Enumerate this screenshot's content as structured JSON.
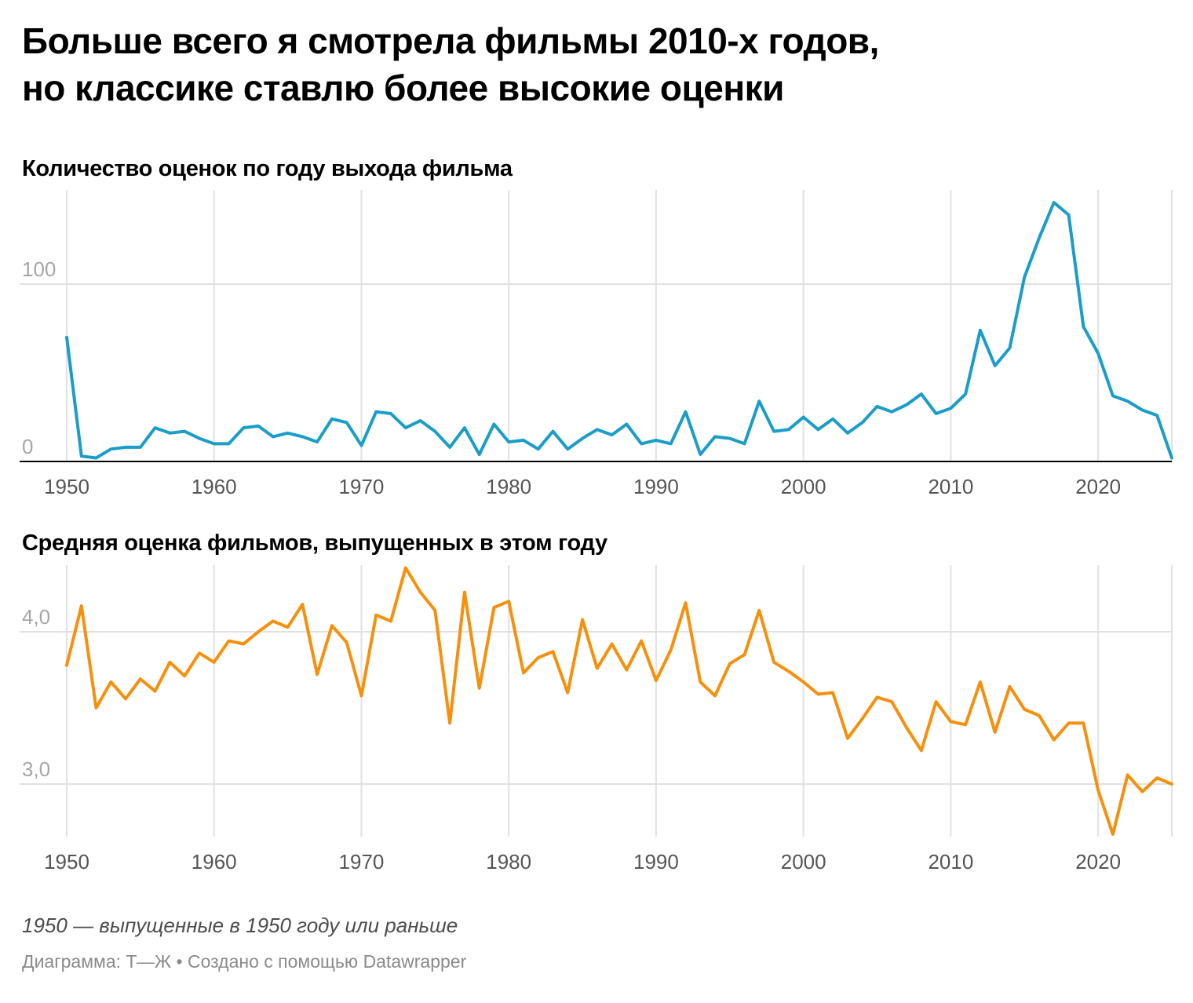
{
  "headline": {
    "line1": "Больше всего я смотрела фильмы 2010-х годов,",
    "line2": "но классике ставлю более высокие оценки"
  },
  "colors": {
    "count_line": "#1a9dc9",
    "rating_line": "#f6900c",
    "grid": "#e1e1e1",
    "baseline": "#000000"
  },
  "chart_data": [
    {
      "type": "line",
      "title": "Количество оценок по году выхода фильма",
      "xlabel": "",
      "ylabel": "",
      "x_ticks": [
        1950,
        1960,
        1970,
        1980,
        1990,
        2000,
        2010,
        2020
      ],
      "y_ticks": [
        {
          "value": 0,
          "label": "0"
        },
        {
          "value": 100,
          "label": "100"
        }
      ],
      "xlim": [
        1950,
        2025
      ],
      "ylim": [
        0,
        152
      ],
      "grid": true,
      "series": [
        {
          "x": [
            1950,
            1951,
            1952,
            1953,
            1954,
            1955,
            1956,
            1957,
            1958,
            1959,
            1960,
            1961,
            1962,
            1963,
            1964,
            1965,
            1966,
            1967,
            1968,
            1969,
            1970,
            1971,
            1972,
            1973,
            1974,
            1975,
            1976,
            1977,
            1978,
            1979,
            1980,
            1981,
            1982,
            1983,
            1984,
            1985,
            1986,
            1987,
            1988,
            1989,
            1990,
            1991,
            1992,
            1993,
            1994,
            1995,
            1996,
            1997,
            1998,
            1999,
            2000,
            2001,
            2002,
            2003,
            2004,
            2005,
            2006,
            2007,
            2008,
            2009,
            2010,
            2011,
            2012,
            2013,
            2014,
            2015,
            2016,
            2017,
            2018,
            2019,
            2020,
            2021,
            2022,
            2023,
            2024,
            2025
          ],
          "values": [
            70,
            3,
            2,
            7,
            8,
            8,
            19,
            16,
            17,
            13,
            10,
            10,
            19,
            20,
            14,
            16,
            14,
            11,
            24,
            22,
            9,
            28,
            27,
            19,
            23,
            17,
            8,
            19,
            4,
            21,
            11,
            12,
            7,
            17,
            7,
            13,
            18,
            15,
            21,
            10,
            12,
            10,
            28,
            4,
            14,
            13,
            10,
            34,
            17,
            18,
            25,
            18,
            24,
            16,
            22,
            31,
            28,
            32,
            38,
            27,
            30,
            38,
            74,
            54,
            64,
            104,
            126,
            146,
            139,
            76,
            61,
            37,
            34,
            29,
            26,
            2
          ]
        }
      ]
    },
    {
      "type": "line",
      "title": "Средняя оценка фильмов, выпущенных в этом году",
      "xlabel": "",
      "ylabel": "",
      "x_ticks": [
        1950,
        1960,
        1970,
        1980,
        1990,
        2000,
        2010,
        2020
      ],
      "y_ticks": [
        {
          "value": 3.0,
          "label": "3,0"
        },
        {
          "value": 4.0,
          "label": "4,0"
        }
      ],
      "xlim": [
        1950,
        2025
      ],
      "ylim": [
        2.66,
        4.42
      ],
      "grid": true,
      "series": [
        {
          "x": [
            1950,
            1951,
            1952,
            1953,
            1954,
            1955,
            1956,
            1957,
            1958,
            1959,
            1960,
            1961,
            1962,
            1963,
            1964,
            1965,
            1966,
            1967,
            1968,
            1969,
            1970,
            1971,
            1972,
            1973,
            1974,
            1975,
            1976,
            1977,
            1978,
            1979,
            1980,
            1981,
            1982,
            1983,
            1984,
            1985,
            1986,
            1987,
            1988,
            1989,
            1990,
            1991,
            1992,
            1993,
            1994,
            1995,
            1996,
            1997,
            1998,
            1999,
            2000,
            2001,
            2002,
            2003,
            2004,
            2005,
            2006,
            2007,
            2008,
            2009,
            2010,
            2011,
            2012,
            2013,
            2014,
            2015,
            2016,
            2017,
            2018,
            2019,
            2020,
            2021,
            2022,
            2023,
            2024,
            2025
          ],
          "values": [
            3.78,
            4.17,
            3.5,
            3.67,
            3.56,
            3.69,
            3.61,
            3.8,
            3.71,
            3.86,
            3.8,
            3.94,
            3.92,
            4.0,
            4.07,
            4.03,
            4.18,
            3.72,
            4.04,
            3.93,
            3.58,
            4.11,
            4.07,
            4.42,
            4.26,
            4.14,
            3.4,
            4.26,
            3.63,
            4.16,
            4.2,
            3.73,
            3.83,
            3.87,
            3.6,
            4.08,
            3.76,
            3.92,
            3.75,
            3.94,
            3.68,
            3.88,
            4.19,
            3.67,
            3.58,
            3.79,
            3.85,
            4.14,
            3.8,
            3.74,
            3.67,
            3.59,
            3.6,
            3.3,
            3.43,
            3.57,
            3.54,
            3.37,
            3.22,
            3.54,
            3.41,
            3.39,
            3.67,
            3.34,
            3.64,
            3.49,
            3.45,
            3.29,
            3.4,
            3.4,
            2.96,
            2.67,
            3.06,
            2.95,
            3.04,
            3.0
          ]
        }
      ]
    }
  ],
  "note": "1950 — выпущенные в 1950 году или раньше",
  "credit": "Диаграмма: Т—Ж • Создано с помощью Datawrapper"
}
